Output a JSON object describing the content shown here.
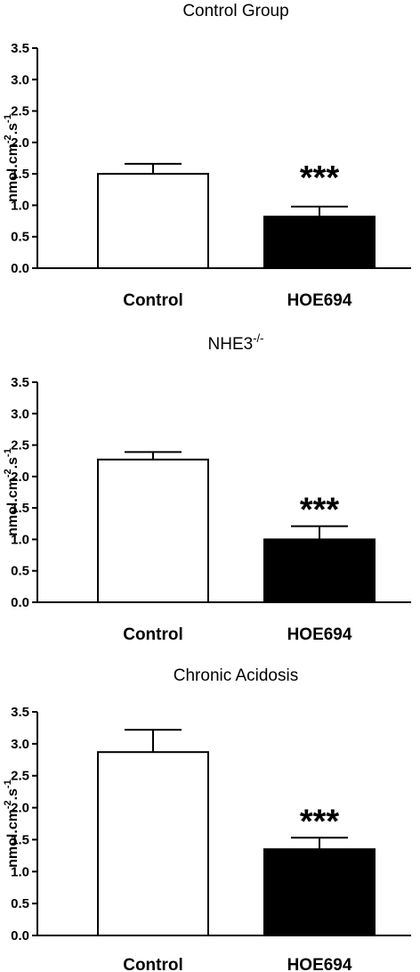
{
  "chart_data": [
    {
      "type": "bar",
      "title": "Control Group",
      "title_superscript": "",
      "ylabel": "nmol.cm",
      "ylabel_sup1": "-2",
      "ylabel_mid": ".s",
      "ylabel_sup2": "-1",
      "ylim": [
        0,
        3.5
      ],
      "yticks": [
        "0.0",
        "0.5",
        "1.0",
        "1.5",
        "2.0",
        "2.5",
        "3.0",
        "3.5"
      ],
      "categories": [
        "Control",
        "HOE694"
      ],
      "values": [
        1.5,
        0.82
      ],
      "errors": [
        0.16,
        0.16
      ],
      "bar_colors": [
        "#ffffff",
        "#000000"
      ],
      "annotations": [
        "",
        "***"
      ],
      "grid": false
    },
    {
      "type": "bar",
      "title": "NHE3",
      "title_superscript": "-/-",
      "ylabel": "nmol.cm",
      "ylabel_sup1": "-2",
      "ylabel_mid": ".s",
      "ylabel_sup2": "-1",
      "ylim": [
        0,
        3.5
      ],
      "yticks": [
        "0.0",
        "0.5",
        "1.0",
        "1.5",
        "2.0",
        "2.5",
        "3.0",
        "3.5"
      ],
      "categories": [
        "Control",
        "HOE694"
      ],
      "values": [
        2.27,
        1.0
      ],
      "errors": [
        0.12,
        0.21
      ],
      "bar_colors": [
        "#ffffff",
        "#000000"
      ],
      "annotations": [
        "",
        "***"
      ],
      "grid": false
    },
    {
      "type": "bar",
      "title": "Chronic Acidosis",
      "title_superscript": "",
      "ylabel": "nmol.cm",
      "ylabel_sup1": "-2",
      "ylabel_mid": ".s",
      "ylabel_sup2": "-1",
      "ylim": [
        0,
        3.5
      ],
      "yticks": [
        "0.0",
        "0.5",
        "1.0",
        "1.5",
        "2.0",
        "2.5",
        "3.0",
        "3.5"
      ],
      "categories": [
        "Control",
        "HOE694"
      ],
      "values": [
        2.87,
        1.35
      ],
      "errors": [
        0.35,
        0.18
      ],
      "bar_colors": [
        "#ffffff",
        "#000000"
      ],
      "annotations": [
        "",
        "***"
      ],
      "grid": false
    }
  ]
}
